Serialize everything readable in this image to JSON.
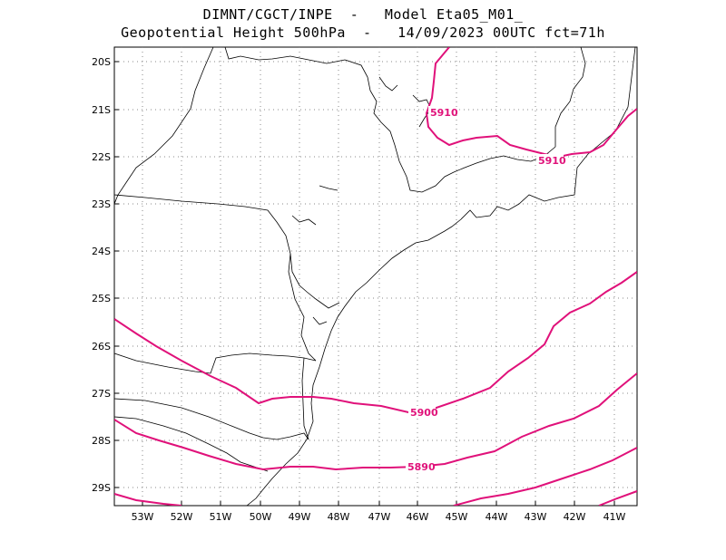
{
  "header": {
    "line1": "DIMNT/CGCT/INPE  -   Model Eta05_M01_",
    "line2": "Geopotential Height 500hPa  -   14/09/2023 00UTC fct=71h"
  },
  "map": {
    "lon_labels": [
      "53W",
      "52W",
      "51W",
      "50W",
      "49W",
      "48W",
      "47W",
      "46W",
      "45W",
      "44W",
      "43W",
      "42W",
      "41W"
    ],
    "lat_labels": [
      "20S",
      "21S",
      "22S",
      "23S",
      "24S",
      "25S",
      "26S",
      "27S",
      "28S",
      "29S"
    ],
    "grid": true,
    "contour_color": "#e0117a",
    "coast_color": "#000000"
  },
  "chart_data": {
    "type": "contour",
    "variable": "Geopotential Height 500hPa",
    "xlim": [
      -53.7,
      -40.5
    ],
    "ylim": [
      -29.4,
      -19.6
    ],
    "contours": [
      {
        "level": "5910",
        "label": "5910"
      },
      {
        "level": "5910",
        "label": "5910"
      },
      {
        "level": "5900",
        "label": "5900"
      },
      {
        "level": "5890",
        "label": "5890"
      },
      {
        "level": "5880",
        "label": ""
      }
    ]
  }
}
